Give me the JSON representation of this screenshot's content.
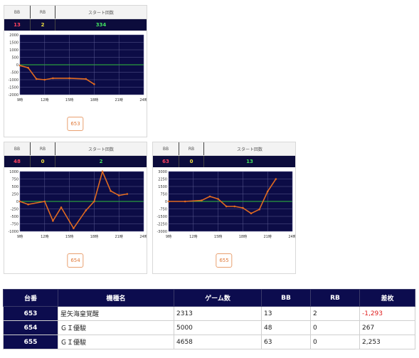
{
  "charts": [
    {
      "headers": {
        "bb": "BB",
        "rb": "RB",
        "start": "スタート回数"
      },
      "values": {
        "bb": "13",
        "rb": "2",
        "start": "334"
      },
      "machine_label": "653",
      "chart_data": {
        "type": "line",
        "y_ticks": [
          "2000",
          "1500",
          "1000",
          "500",
          "0",
          "-500",
          "-1000",
          "-1500",
          "-2000"
        ],
        "x_ticks": [
          "9時",
          "12時",
          "15時",
          "18時",
          "21時",
          "24時"
        ],
        "ylim": [
          -2000,
          2000
        ],
        "xlim": [
          9,
          24
        ],
        "points": [
          [
            9,
            -50
          ],
          [
            10,
            -200
          ],
          [
            11,
            -950
          ],
          [
            12,
            -1000
          ],
          [
            13,
            -900
          ],
          [
            15,
            -900
          ],
          [
            17,
            -950
          ],
          [
            18,
            -1300
          ]
        ]
      }
    },
    {
      "headers": {
        "bb": "BB",
        "rb": "RB",
        "start": "スタート回数"
      },
      "values": {
        "bb": "48",
        "rb": "0",
        "start": "2"
      },
      "machine_label": "654",
      "chart_data": {
        "type": "line",
        "y_ticks": [
          "1000",
          "750",
          "500",
          "250",
          "0",
          "-250",
          "-500",
          "-750",
          "-1000"
        ],
        "x_ticks": [
          "9時",
          "12時",
          "15時",
          "18時",
          "21時",
          "24時"
        ],
        "ylim": [
          -1000,
          1000
        ],
        "xlim": [
          9,
          24
        ],
        "points": [
          [
            9,
            0
          ],
          [
            10,
            -100
          ],
          [
            12,
            0
          ],
          [
            13,
            -650
          ],
          [
            14,
            -200
          ],
          [
            15.5,
            -900
          ],
          [
            17,
            -300
          ],
          [
            18,
            0
          ],
          [
            19,
            1000
          ],
          [
            20,
            350
          ],
          [
            21,
            200
          ],
          [
            22,
            250
          ]
        ]
      }
    },
    {
      "headers": {
        "bb": "BB",
        "rb": "RB",
        "start": "スタート回数"
      },
      "values": {
        "bb": "63",
        "rb": "0",
        "start": "13"
      },
      "machine_label": "655",
      "chart_data": {
        "type": "line",
        "y_ticks": [
          "3000",
          "2250",
          "1500",
          "750",
          "0",
          "-750",
          "-1500",
          "-2250",
          "-3000"
        ],
        "x_ticks": [
          "9時",
          "12時",
          "15時",
          "18時",
          "21時",
          "24時"
        ],
        "ylim": [
          -3000,
          3000
        ],
        "xlim": [
          9,
          24
        ],
        "points": [
          [
            9,
            0
          ],
          [
            11,
            0
          ],
          [
            13,
            100
          ],
          [
            14,
            500
          ],
          [
            15,
            250
          ],
          [
            16,
            -500
          ],
          [
            17,
            -500
          ],
          [
            18,
            -650
          ],
          [
            19,
            -1200
          ],
          [
            20,
            -800
          ],
          [
            21,
            1000
          ],
          [
            22,
            2250
          ]
        ]
      }
    }
  ],
  "summary": {
    "headers": [
      "台番",
      "機種名",
      "ゲーム数",
      "BB",
      "RB",
      "差枚"
    ],
    "rows": [
      [
        "653",
        "星矢海皇覚醒",
        "2313",
        "13",
        "2",
        "-1,293"
      ],
      [
        "654",
        "ＧＩ優駿",
        "5000",
        "48",
        "0",
        "267"
      ],
      [
        "655",
        "ＧＩ優駿",
        "4658",
        "63",
        "0",
        "2,253"
      ]
    ]
  }
}
